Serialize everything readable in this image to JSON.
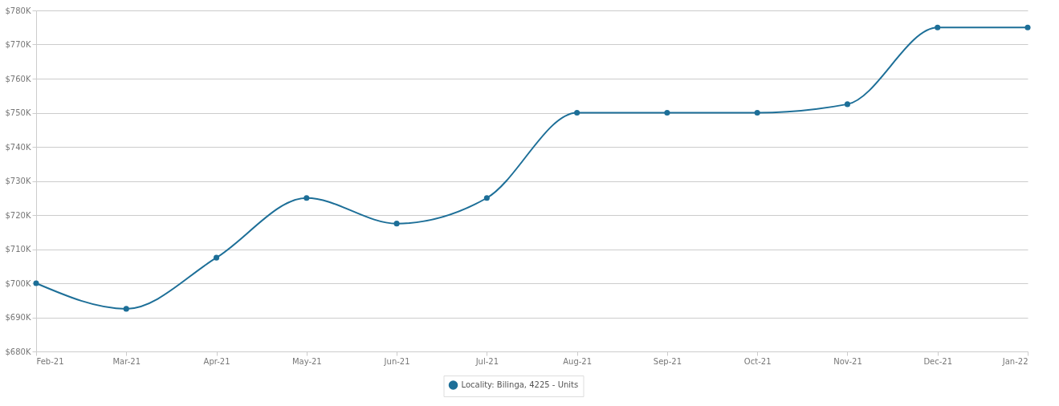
{
  "chart_data": {
    "type": "line",
    "categories": [
      "Feb-21",
      "Mar-21",
      "Apr-21",
      "May-21",
      "Jun-21",
      "Jul-21",
      "Aug-21",
      "Sep-21",
      "Oct-21",
      "Nov-21",
      "Dec-21",
      "Jan-22"
    ],
    "series": [
      {
        "name": "Locality: Bilinga, 4225 - Units",
        "color": "#1d6f98",
        "values": [
          700000,
          692500,
          707500,
          725000,
          717500,
          725000,
          750000,
          750000,
          750000,
          752500,
          775000,
          775000
        ]
      }
    ],
    "ylim": [
      680000,
      780000
    ],
    "yticks": [
      {
        "value": 680000,
        "label": "$680K"
      },
      {
        "value": 690000,
        "label": "$690K"
      },
      {
        "value": 700000,
        "label": "$700K"
      },
      {
        "value": 710000,
        "label": "$710K"
      },
      {
        "value": 720000,
        "label": "$720K"
      },
      {
        "value": 730000,
        "label": "$730K"
      },
      {
        "value": 740000,
        "label": "$740K"
      },
      {
        "value": 750000,
        "label": "$750K"
      },
      {
        "value": 760000,
        "label": "$760K"
      },
      {
        "value": 770000,
        "label": "$770K"
      },
      {
        "value": 780000,
        "label": "$780K"
      }
    ],
    "grid": "y",
    "legend": "bottom",
    "marker": "circle",
    "line_style": "solid"
  }
}
